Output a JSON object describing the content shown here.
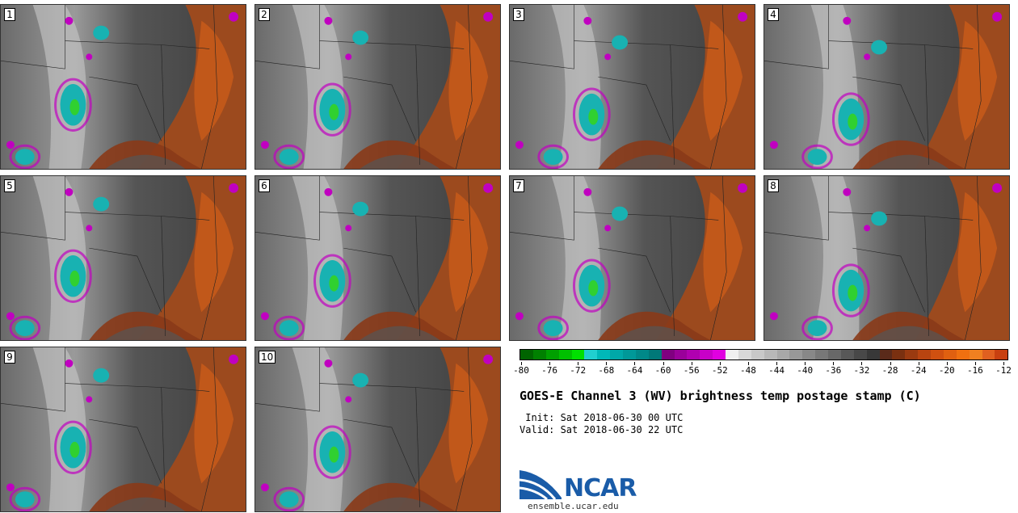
{
  "title": "GOES-E Channel 3 (WV) brightness temp postage stamp (C)",
  "init_line": " Init: Sat 2018-06-30 00 UTC",
  "valid_line": "Valid: Sat 2018-06-30 22 UTC",
  "logo_text": "NCAR",
  "site": "ensemble.ucar.edu",
  "panels": [
    "1",
    "2",
    "3",
    "4",
    "5",
    "6",
    "7",
    "8",
    "9",
    "10"
  ],
  "colorbar": {
    "ticks": [
      "-80",
      "-76",
      "-72",
      "-68",
      "-64",
      "-60",
      "-56",
      "-52",
      "-48",
      "-44",
      "-40",
      "-36",
      "-32",
      "-28",
      "-24",
      "-20",
      "-16",
      "-12"
    ],
    "colors": [
      "#006400",
      "#008000",
      "#00a000",
      "#00c000",
      "#00e000",
      "#20cfcf",
      "#00b8b8",
      "#00a8a8",
      "#009898",
      "#008888",
      "#007878",
      "#800080",
      "#9a009a",
      "#b000b0",
      "#c800c8",
      "#e000e0",
      "#f0f0f0",
      "#d8d8d8",
      "#c8c8c8",
      "#b8b8b8",
      "#a8a8a8",
      "#989898",
      "#888888",
      "#787878",
      "#686868",
      "#585858",
      "#484848",
      "#383838",
      "#5a2a1a",
      "#7a3010",
      "#9a3a10",
      "#b84410",
      "#d05010",
      "#e06010",
      "#f07010",
      "#f08020",
      "#e06020",
      "#c84010"
    ]
  }
}
